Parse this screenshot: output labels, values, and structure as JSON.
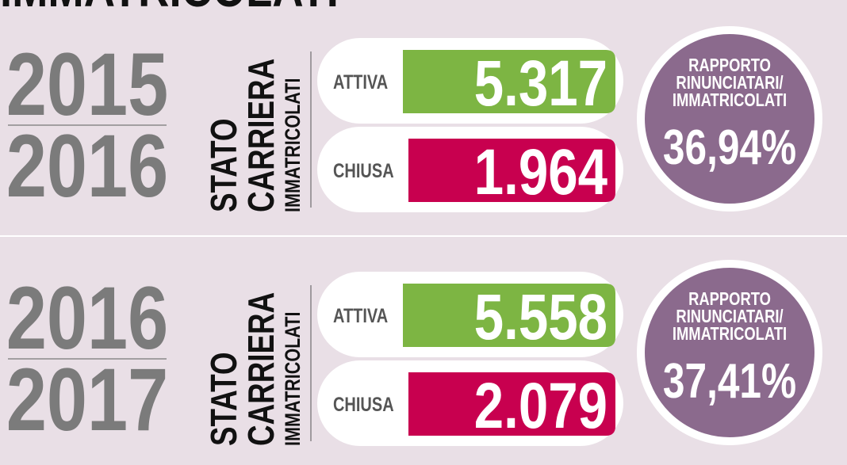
{
  "title": "IMMATRICOLATI",
  "sections": [
    {
      "year_top": "2015",
      "year_bottom": "2016",
      "side_label": [
        "STATO",
        "CARRIERA",
        "IMMATRICOLATI"
      ],
      "rows": [
        {
          "label": "ATTIVA",
          "value": "5.317"
        },
        {
          "label": "CHIUSA",
          "value": "1.964"
        }
      ],
      "ratio_label": [
        "RAPPORTO",
        "RINUNCIATARI/",
        "IMMATRICOLATI"
      ],
      "ratio_value": "36,94%"
    },
    {
      "year_top": "2016",
      "year_bottom": "2017",
      "side_label": [
        "STATO",
        "CARRIERA",
        "IMMATRICOLATI"
      ],
      "rows": [
        {
          "label": "ATTIVA",
          "value": "5.558"
        },
        {
          "label": "CHIUSA",
          "value": "2.079"
        }
      ],
      "ratio_label": [
        "RAPPORTO",
        "RINUNCIATARI/",
        "IMMATRICOLATI"
      ],
      "ratio_value": "37,41%"
    }
  ]
}
